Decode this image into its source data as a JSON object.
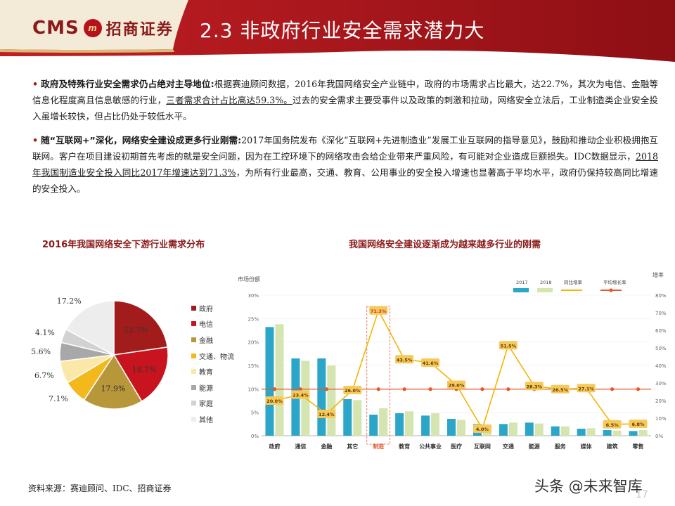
{
  "header": {
    "logo_text": "CMS",
    "logo_seal": "m",
    "logo_cn": "招商证券",
    "title": "2.3 非政府行业安全需求潜力大"
  },
  "bullets": [
    {
      "lead": "政府及特殊行业安全需求仍占绝对主导地位:",
      "text1": "根据赛迪顾问数据，2016年我国网络安全产业链中，政府的市场需求占比最大，达22.7%，其次为电信、金融等信息化程度高且信息敏感的行业，",
      "underline": "三者需求合计占比高达59.3%。",
      "text2": "过去的安全需求主要受事件以及政策的刺激和拉动，网络安全立法后，工业制造类企业安全投入虽增长较快，但占比仍处于较低水平。"
    },
    {
      "lead": "随“互联网+”深化，网络安全建设成更多行业刚需:",
      "text1": "2017年国务院发布《深化“互联网+先进制造业”发展工业互联网的指导意见》，鼓励和推动企业积极拥抱互联网。客户在项目建设初期首先考虑的就是安全问题，因为在工控环境下的网络攻击会给企业带来严重风险，有可能对企业造成巨额损失。IDC数据显示，",
      "underline": "2018年我国制造业安全投入同比2017年增速达到71.3%",
      "text2": "，为所有行业最高，交通、教育、公用事业的安全投入增速也显著高于平均水平，政府仍保持较高同比增速的安全投入。"
    }
  ],
  "chart_data": [
    {
      "type": "pie",
      "title": "2016年我国网络安全下游行业需求分布",
      "categories": [
        "政府",
        "电信",
        "金融",
        "交通、物流",
        "教育",
        "能源",
        "家庭",
        "其他"
      ],
      "values": [
        22.7,
        18.7,
        17.9,
        7.1,
        6.7,
        5.6,
        4.1,
        17.2
      ],
      "labels": [
        "22.7%",
        "18.7%",
        "17.9%",
        "7.1%",
        "6.7%",
        "5.6%",
        "4.1%",
        "17.2%"
      ],
      "colors": [
        "#a31c1c",
        "#c8141e",
        "#b8963a",
        "#f2b81c",
        "#fbe7a8",
        "#a8a8a8",
        "#d2d2d2",
        "#ededed"
      ],
      "legend": "right"
    },
    {
      "type": "bar",
      "title": "我国网络安全建设逐渐成为越来越多行业的刚需",
      "ylabel": "市场份额",
      "y2label": "增率",
      "categories": [
        "政府",
        "通信",
        "金融",
        "其它",
        "制造",
        "教育",
        "公共事业",
        "医疗",
        "互联网",
        "交通",
        "能源",
        "服务",
        "媒体",
        "建筑",
        "零售"
      ],
      "highlight": "制造",
      "ylim": [
        0,
        30
      ],
      "yticks": [
        "0%",
        "5%",
        "10%",
        "15%",
        "20%",
        "25%",
        "30%"
      ],
      "y2lim": [
        0,
        80
      ],
      "y2ticks": [
        "0%",
        "10%",
        "20%",
        "30%",
        "40%",
        "50%",
        "60%",
        "70%",
        "80%"
      ],
      "series": [
        {
          "name": "2017",
          "kind": "bar",
          "axis": "left",
          "color": "#2ba6c9",
          "values": [
            23.2,
            16.5,
            16.5,
            7.8,
            4.5,
            4.8,
            4.3,
            3.6,
            2.5,
            2.5,
            2.8,
            2.0,
            1.5,
            1.2,
            1.0
          ]
        },
        {
          "name": "2018",
          "kind": "bar",
          "axis": "left",
          "color": "#d4e5b0",
          "values": [
            23.8,
            16.0,
            15.0,
            7.6,
            5.9,
            5.2,
            4.8,
            3.4,
            2.3,
            2.8,
            2.6,
            2.0,
            1.6,
            1.1,
            1.2
          ]
        },
        {
          "name": "同比增率",
          "kind": "line",
          "axis": "right",
          "color": "#f5b400",
          "values": [
            20.0,
            23.4,
            12.4,
            26.0,
            71.3,
            43.5,
            41.6,
            29.0,
            4.0,
            51.5,
            28.3,
            26.5,
            27.1,
            6.5,
            6.8
          ],
          "labels": [
            "20.0%",
            "23.4%",
            "12.4%",
            "26.0%",
            "71.3%",
            "43.5%",
            "41.6%",
            "29.0%",
            "4.0%",
            "51.5%",
            "28.3%",
            "26.5%",
            "27.1%",
            "6.5%",
            "6.8%"
          ]
        },
        {
          "name": "平均增长率",
          "kind": "line",
          "axis": "right",
          "color": "#e4572e",
          "value": 26.5
        }
      ],
      "legend": "top-right"
    }
  ],
  "footer": {
    "source": "资料来源：赛迪顾问、IDC、招商证券",
    "watermark": "头条 @未来智库",
    "page_number": "17"
  }
}
